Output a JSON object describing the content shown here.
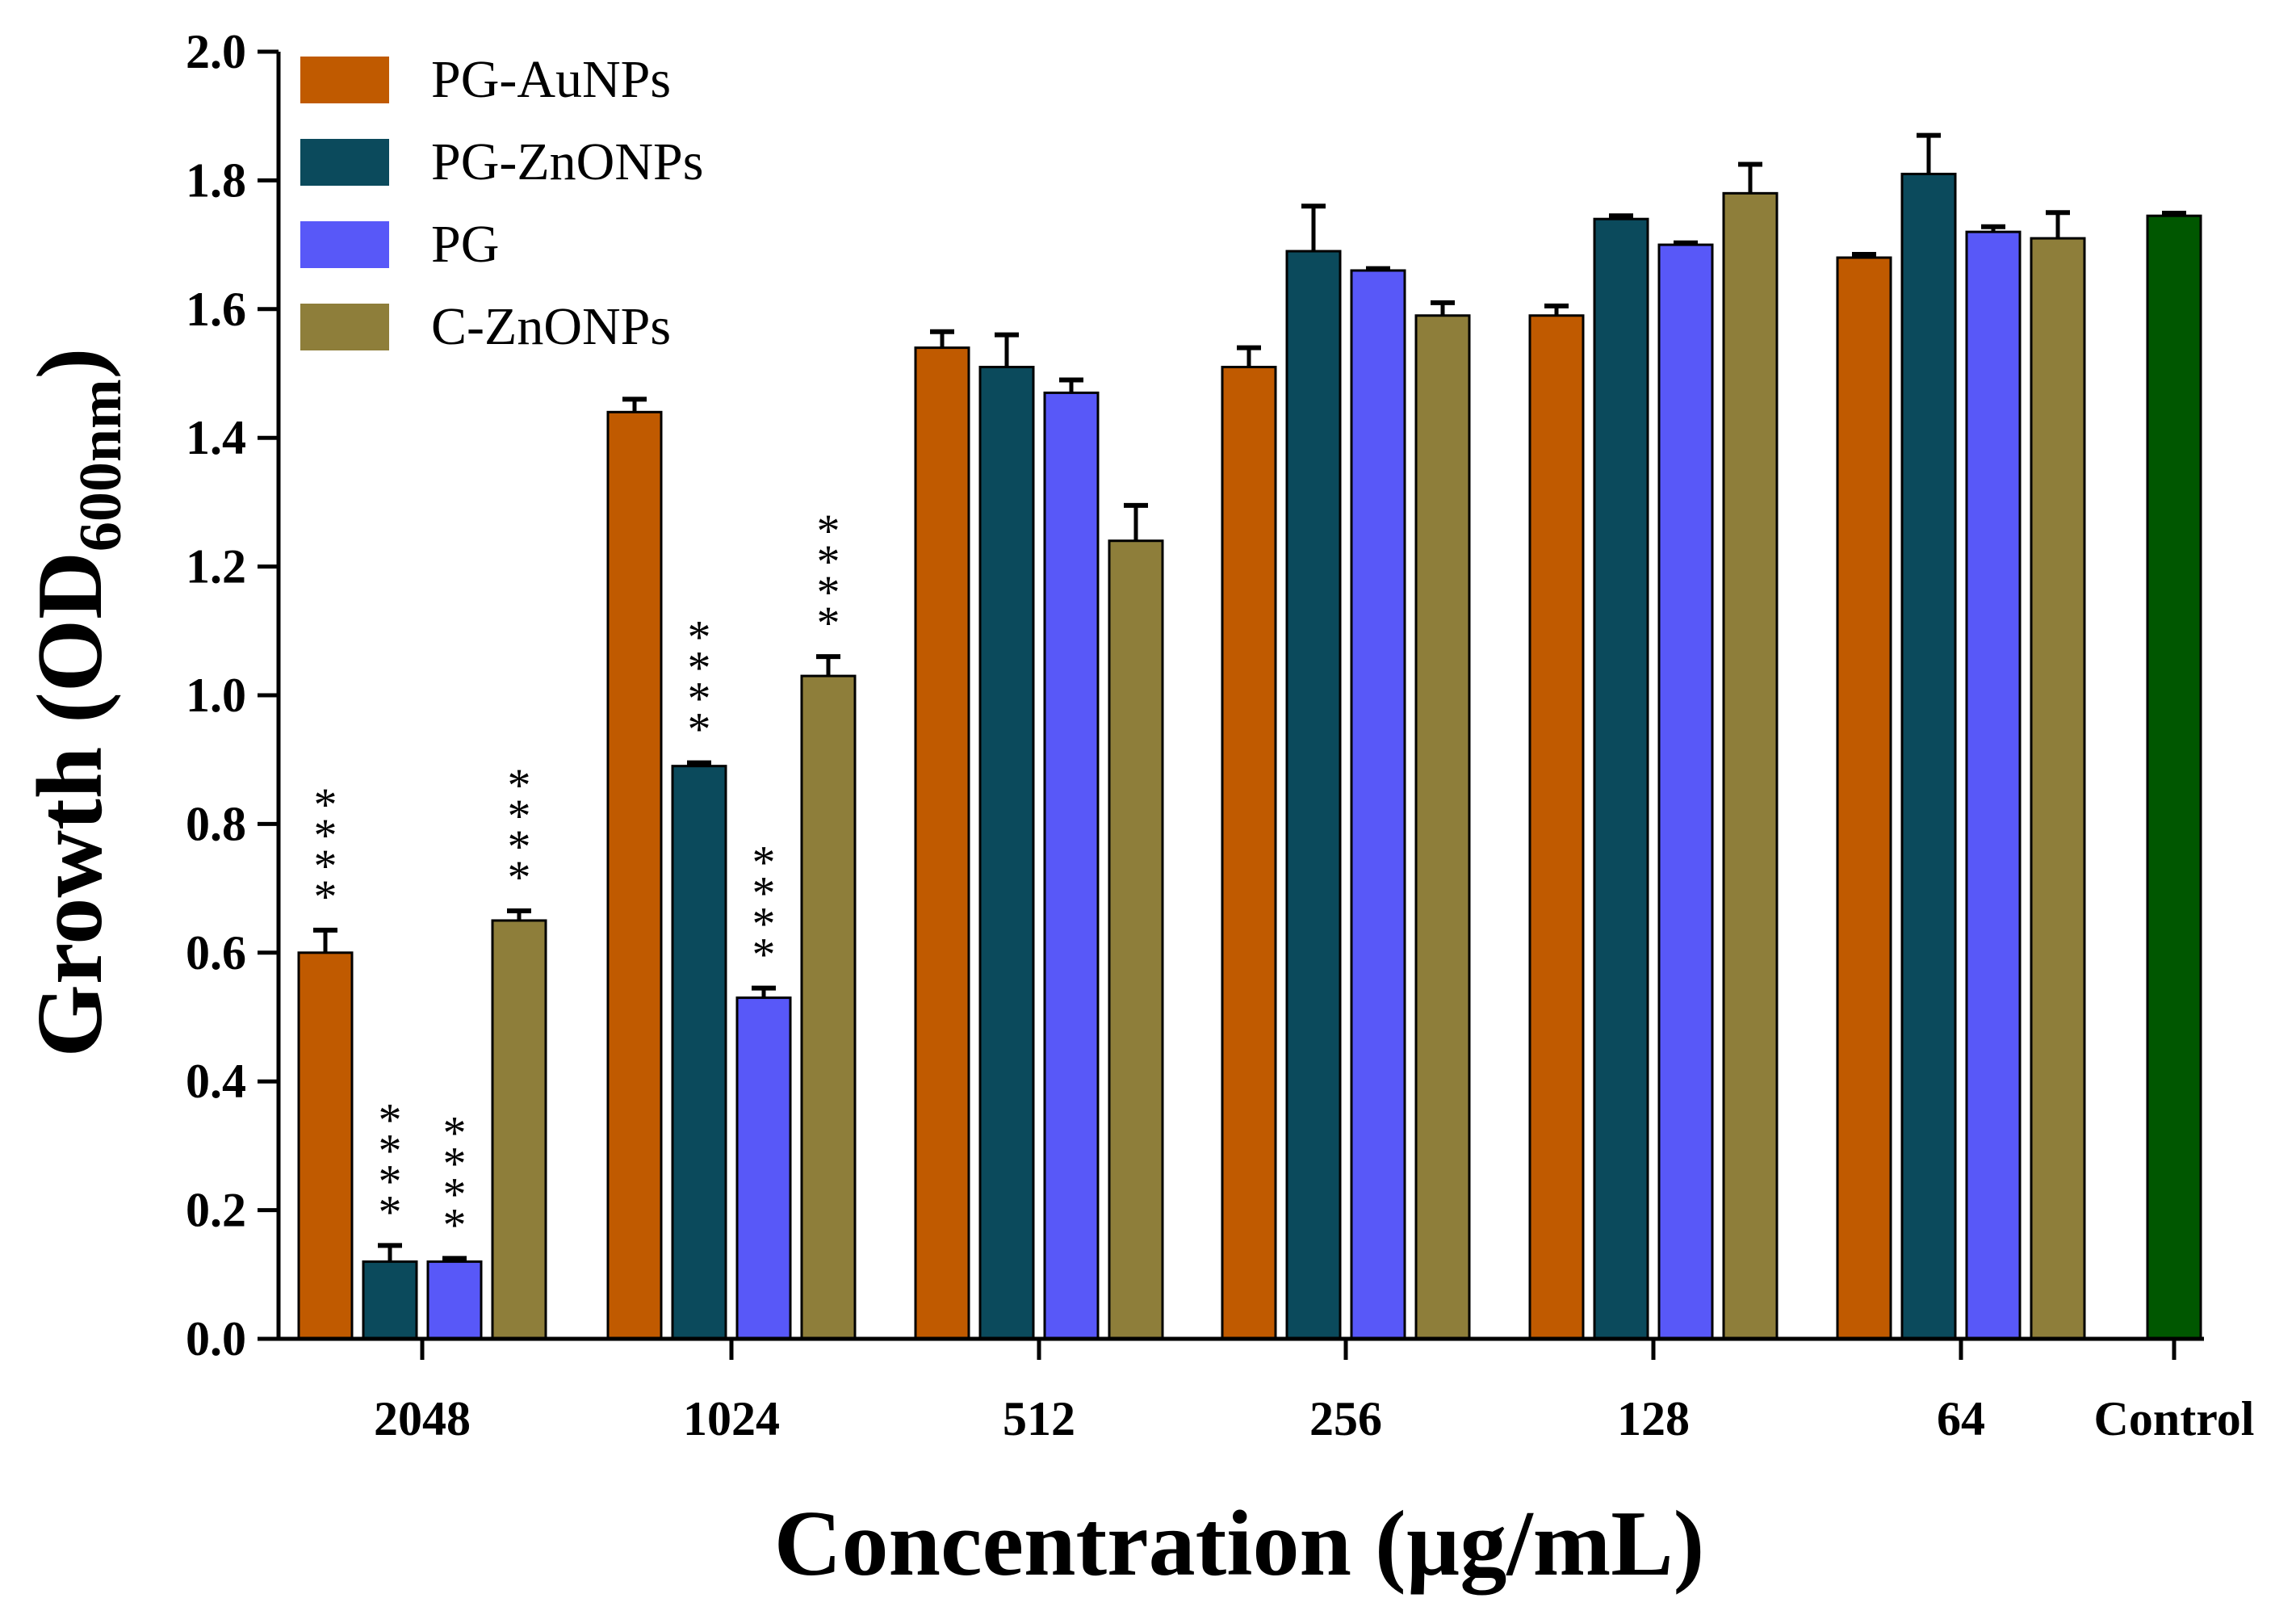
{
  "chart_data": {
    "type": "bar",
    "title": "",
    "xlabel": "Concentration (µg/mL)",
    "ylabel_main": "Growth (OD",
    "ylabel_sub": "600nm",
    "ylabel_close": ")",
    "ylim": [
      0,
      2.0
    ],
    "yticks": [
      0.0,
      0.2,
      0.4,
      0.6,
      0.8,
      1.0,
      1.2,
      1.4,
      1.6,
      1.8,
      2.0
    ],
    "ytick_labels": [
      "0.0",
      "0.2",
      "0.4",
      "0.6",
      "0.8",
      "1.0",
      "1.2",
      "1.4",
      "1.6",
      "1.8",
      "2.0"
    ],
    "categories": [
      "2048",
      "1024",
      "512",
      "256",
      "128",
      "64"
    ],
    "series": [
      {
        "name": "PG-AuNPs",
        "color": "#C05A00",
        "values": [
          0.6,
          1.44,
          1.54,
          1.51,
          1.59,
          1.68
        ],
        "errors": [
          0.035,
          0.02,
          0.025,
          0.03,
          0.015,
          0.005
        ],
        "sig": [
          "****",
          "",
          "",
          "",
          "",
          ""
        ]
      },
      {
        "name": "PG-ZnONPs",
        "color": "#0B4A5C",
        "values": [
          0.12,
          0.89,
          1.51,
          1.69,
          1.74,
          1.81
        ],
        "errors": [
          0.025,
          0.005,
          0.05,
          0.07,
          0.005,
          0.06
        ],
        "sig": [
          "****",
          "****",
          "",
          "",
          "",
          ""
        ]
      },
      {
        "name": "PG",
        "color": "#5858F8",
        "values": [
          0.12,
          0.53,
          1.47,
          1.66,
          1.7,
          1.72
        ],
        "errors": [
          0.005,
          0.015,
          0.02,
          0.003,
          0.003,
          0.008
        ],
        "sig": [
          "****",
          "****",
          "",
          "",
          "",
          ""
        ]
      },
      {
        "name": "C-ZnONPs",
        "color": "#8E7E3A",
        "values": [
          0.65,
          1.03,
          1.24,
          1.59,
          1.78,
          1.71
        ],
        "errors": [
          0.015,
          0.03,
          0.055,
          0.02,
          0.045,
          0.04
        ],
        "sig": [
          "****",
          "****",
          "",
          "",
          "",
          ""
        ]
      }
    ],
    "control": {
      "label": "Control",
      "value": 1.745,
      "error": 0.004,
      "color": "#005700"
    },
    "legend": {
      "position": "top-left",
      "entries": [
        "PG-AuNPs",
        "PG-ZnONPs",
        "PG",
        "C-ZnONPs"
      ]
    }
  }
}
